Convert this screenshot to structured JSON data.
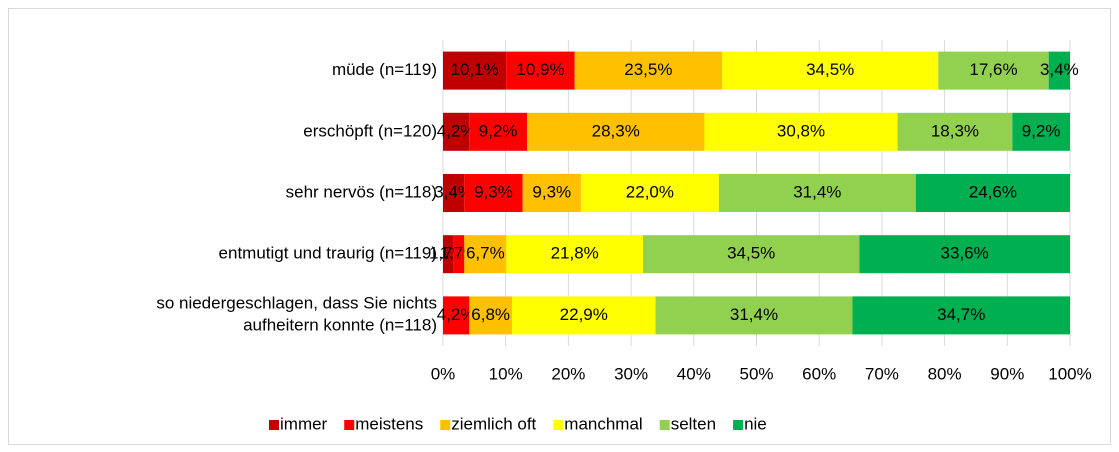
{
  "chart_data": {
    "type": "stacked_barh",
    "categories": [
      "müde (n=119)",
      "erschöpft (n=120)",
      "sehr nervös (n=118)",
      "entmutigt und traurig (n=119)",
      "so niedergeschlagen, dass Sie nichts\naufheitern konnte (n=118)"
    ],
    "series": [
      {
        "name": "immer",
        "color": "#c00000",
        "values": [
          10.1,
          4.2,
          3.4,
          1.7,
          null
        ],
        "value_labels": [
          "10,1%",
          "4,2%",
          "3,4%",
          "1,7%",
          null
        ]
      },
      {
        "name": "meistens",
        "color": "#ff0000",
        "values": [
          10.9,
          9.2,
          9.3,
          1.7,
          4.2
        ],
        "value_labels": [
          "10,9%",
          "9,2%",
          "9,3%",
          "1,7%",
          "4,2%"
        ]
      },
      {
        "name": "ziemlich oft",
        "color": "#ffc000",
        "values": [
          23.5,
          28.3,
          9.3,
          6.7,
          6.8
        ],
        "value_labels": [
          "23,5%",
          "28,3%",
          "9,3%",
          "6,7%",
          "6,8%"
        ]
      },
      {
        "name": "manchmal",
        "color": "#ffff00",
        "values": [
          34.5,
          30.8,
          22.0,
          21.8,
          22.9
        ],
        "value_labels": [
          "34,5%",
          "30,8%",
          "22,0%",
          "21,8%",
          "22,9%"
        ]
      },
      {
        "name": "selten",
        "color": "#92d050",
        "values": [
          17.6,
          18.3,
          31.4,
          34.5,
          31.4
        ],
        "value_labels": [
          "17,6%",
          "18,3%",
          "31,4%",
          "34,5%",
          "31,4%"
        ]
      },
      {
        "name": "nie",
        "color": "#00b050",
        "values": [
          3.4,
          9.2,
          24.6,
          33.6,
          34.7
        ],
        "value_labels": [
          "3,4%",
          "9,2%",
          "24,6%",
          "33,6%",
          "34,7%"
        ]
      }
    ],
    "xlim": [
      0,
      100
    ],
    "xticks": [
      {
        "value": 0,
        "label": "0%"
      },
      {
        "value": 10,
        "label": "10%"
      },
      {
        "value": 20,
        "label": "20%"
      },
      {
        "value": 30,
        "label": "30%"
      },
      {
        "value": 40,
        "label": "40%"
      },
      {
        "value": 50,
        "label": "50%"
      },
      {
        "value": 60,
        "label": "60%"
      },
      {
        "value": 70,
        "label": "70%"
      },
      {
        "value": 80,
        "label": "80%"
      },
      {
        "value": 90,
        "label": "90%"
      },
      {
        "value": 100,
        "label": "100%"
      }
    ],
    "grid": true,
    "legend": "bottom"
  }
}
